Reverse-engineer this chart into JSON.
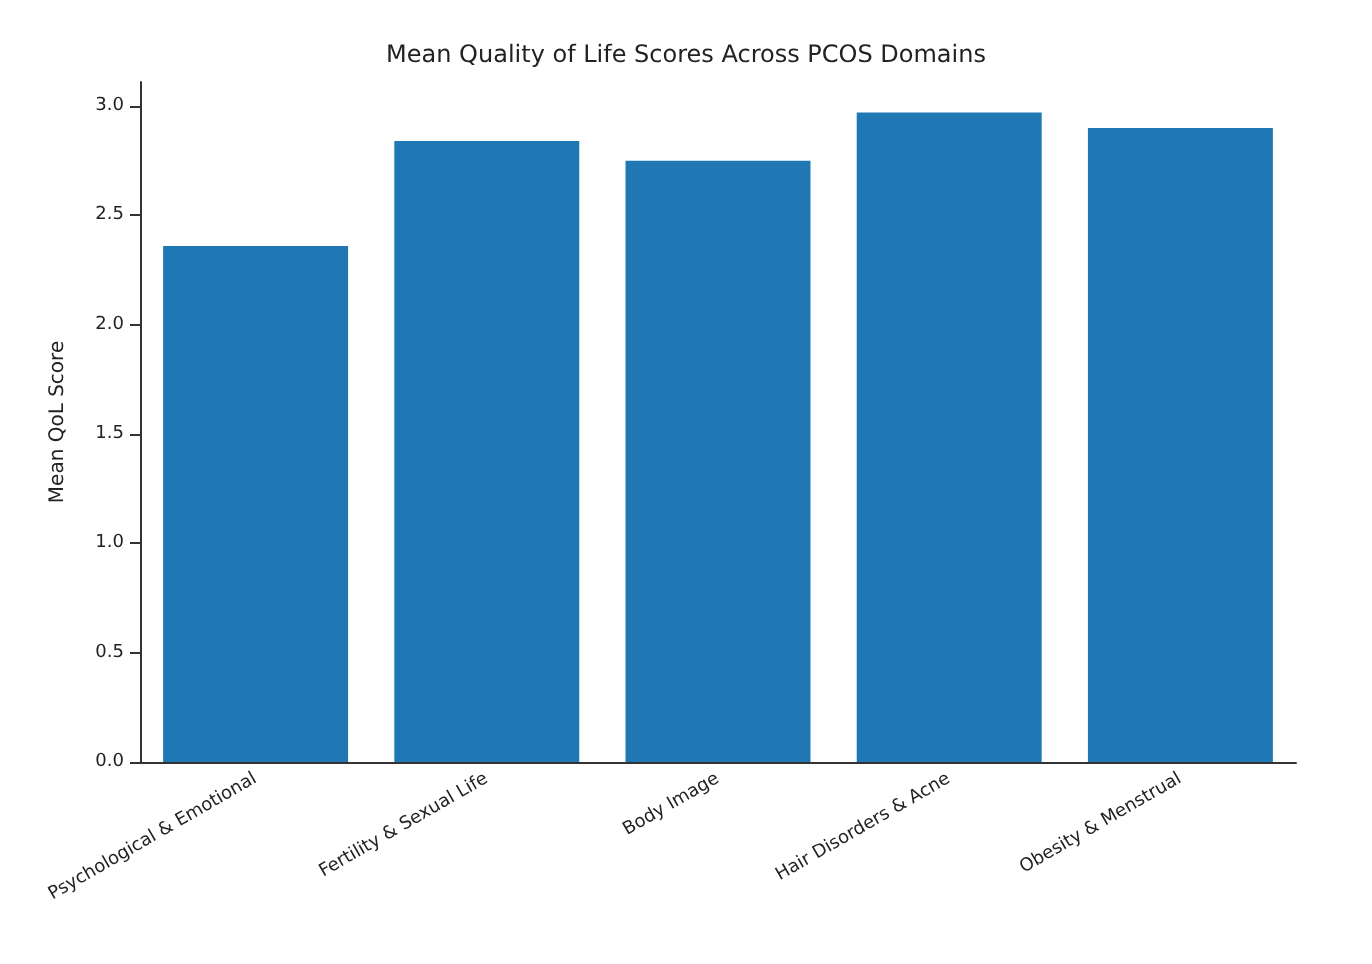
{
  "chart_data": {
    "type": "bar",
    "title": "Mean Quality of Life Scores Across PCOS Domains",
    "ylabel": "Mean QoL Score",
    "categories": [
      "Psychological & Emotional",
      "Fertility & Sexual Life",
      "Body Image",
      "Hair Disorders & Acne",
      "Obesity & Menstrual"
    ],
    "values": [
      2.36,
      2.84,
      2.75,
      2.97,
      2.9
    ],
    "color": "#1f77b4",
    "ylim": [
      0,
      3.11
    ],
    "yticks": [
      {
        "value": 0,
        "label": "0.0"
      },
      {
        "value": 0.5,
        "label": "0.5"
      },
      {
        "value": 1,
        "label": "1.0"
      },
      {
        "value": 1.5,
        "label": "1.5"
      },
      {
        "value": 2,
        "label": "2.0"
      },
      {
        "value": 2.5,
        "label": "2.5"
      },
      {
        "value": 3,
        "label": "3.0"
      }
    ],
    "grid": false
  }
}
